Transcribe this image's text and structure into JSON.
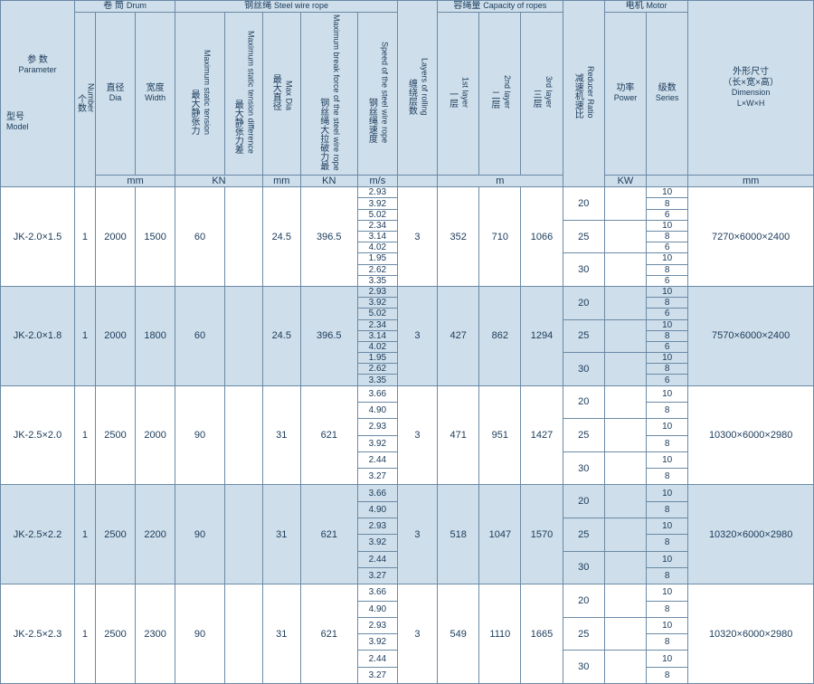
{
  "colors": {
    "header_bg": "#cedeea",
    "row_even_bg": "#cedeea",
    "row_odd_bg": "#ffffff",
    "border": "#6a8aa6",
    "text": "#1a3a5a"
  },
  "header": {
    "param_cn": "参 数",
    "param_en": "Parameter",
    "model_cn": "型号",
    "model_en": "Model",
    "drum_cn": "卷 筒",
    "drum_en": "Drum",
    "num_cn": "个数",
    "num_en": "Number",
    "dia_cn": "直径",
    "dia_en": "Dia",
    "wid_cn": "宽度",
    "wid_en": "Width",
    "unit_mm": "mm",
    "unit_kn": "KN",
    "unit_m": "m",
    "unit_ms": "m/s",
    "unit_kw": "KW",
    "rope_cn": "钢丝绳",
    "rope_en": "Steel wire rope",
    "maxst_cn": "最大静张力",
    "maxst_en": "Maximum static tension",
    "maxdiff_cn": "最大静张力差",
    "maxdiff_en": "Maximum static tension difference",
    "maxdia_cn": "最大直径",
    "maxdia_en": "Max Dia",
    "maxbrk_cn": "钢丝绳大拉破力最",
    "maxbrk_en": "Maximum break force of the steel wire rope",
    "speed_cn": "钢丝绳速度",
    "speed_en": "Speed of the steel wire rope",
    "layers_cn": "缠绕层数",
    "layers_en": "Layers of rolling",
    "cap_cn": "容绳量",
    "cap_en": "Capacity of ropes",
    "l1_cn": "一层",
    "l1_en": "1st layer",
    "l2_cn": "二层",
    "l2_en": "2nd layer",
    "l3_cn": "三层",
    "l3_en": "3rd layer",
    "red_cn": "减速机速比",
    "red_en": "Reducer Ratio",
    "motor_cn": "电机",
    "motor_en": "Motor",
    "pow_cn": "功率",
    "pow_en": "Power",
    "ser_cn": "级数",
    "ser_en": "Series",
    "dim_cn": "外形尺寸",
    "dim_sub_cn": "（长×宽×高）",
    "dim_en": "Dimension",
    "dim_sub_en": "L×W×H"
  },
  "rows": [
    {
      "model": "JK-2.0×1.5",
      "num": "1",
      "drum_dia": "2000",
      "drum_wid": "1500",
      "max_static": "60",
      "max_diff": "",
      "max_dia": "24.5",
      "max_break": "396.5",
      "speeds": [
        "2.93",
        "3.92",
        "5.02",
        "2.34",
        "3.14",
        "4.02",
        "1.95",
        "2.62",
        "3.35"
      ],
      "layers": "3",
      "l1": "352",
      "l2": "710",
      "l3": "1066",
      "ratios": [
        "20",
        "25",
        "30"
      ],
      "series": [
        "10",
        "8",
        "6",
        "10",
        "8",
        "6",
        "10",
        "8",
        "6"
      ],
      "dim": "7270×6000×2400",
      "shade": "odd"
    },
    {
      "model": "JK-2.0×1.8",
      "num": "1",
      "drum_dia": "2000",
      "drum_wid": "1800",
      "max_static": "60",
      "max_diff": "",
      "max_dia": "24.5",
      "max_break": "396.5",
      "speeds": [
        "2.93",
        "3.92",
        "5.02",
        "2.34",
        "3.14",
        "4.02",
        "1.95",
        "2.62",
        "3.35"
      ],
      "layers": "3",
      "l1": "427",
      "l2": "862",
      "l3": "1294",
      "ratios": [
        "20",
        "25",
        "30"
      ],
      "series": [
        "10",
        "8",
        "6",
        "10",
        "8",
        "6",
        "10",
        "8",
        "6"
      ],
      "dim": "7570×6000×2400",
      "shade": "even"
    },
    {
      "model": "JK-2.5×2.0",
      "num": "1",
      "drum_dia": "2500",
      "drum_wid": "2000",
      "max_static": "90",
      "max_diff": "",
      "max_dia": "31",
      "max_break": "621",
      "speeds": [
        "3.66",
        "4.90",
        "2.93",
        "3.92",
        "2.44",
        "3.27"
      ],
      "layers": "3",
      "l1": "471",
      "l2": "951",
      "l3": "1427",
      "ratios": [
        "20",
        "25",
        "30"
      ],
      "series": [
        "10",
        "8",
        "10",
        "8",
        "10",
        "8"
      ],
      "dim": "10300×6000×2980",
      "shade": "odd"
    },
    {
      "model": "JK-2.5×2.2",
      "num": "1",
      "drum_dia": "2500",
      "drum_wid": "2200",
      "max_static": "90",
      "max_diff": "",
      "max_dia": "31",
      "max_break": "621",
      "speeds": [
        "3.66",
        "4.90",
        "2.93",
        "3.92",
        "2.44",
        "3.27"
      ],
      "layers": "3",
      "l1": "518",
      "l2": "1047",
      "l3": "1570",
      "ratios": [
        "20",
        "25",
        "30"
      ],
      "series": [
        "10",
        "8",
        "10",
        "8",
        "10",
        "8"
      ],
      "dim": "10320×6000×2980",
      "shade": "even"
    },
    {
      "model": "JK-2.5×2.3",
      "num": "1",
      "drum_dia": "2500",
      "drum_wid": "2300",
      "max_static": "90",
      "max_diff": "",
      "max_dia": "31",
      "max_break": "621",
      "speeds": [
        "3.66",
        "4.90",
        "2.93",
        "3.92",
        "2.44",
        "3.27"
      ],
      "layers": "3",
      "l1": "549",
      "l2": "1110",
      "l3": "1665",
      "ratios": [
        "20",
        "25",
        "30"
      ],
      "series": [
        "10",
        "8",
        "10",
        "8",
        "10",
        "8"
      ],
      "dim": "10320×6000×2980",
      "shade": "odd"
    }
  ]
}
